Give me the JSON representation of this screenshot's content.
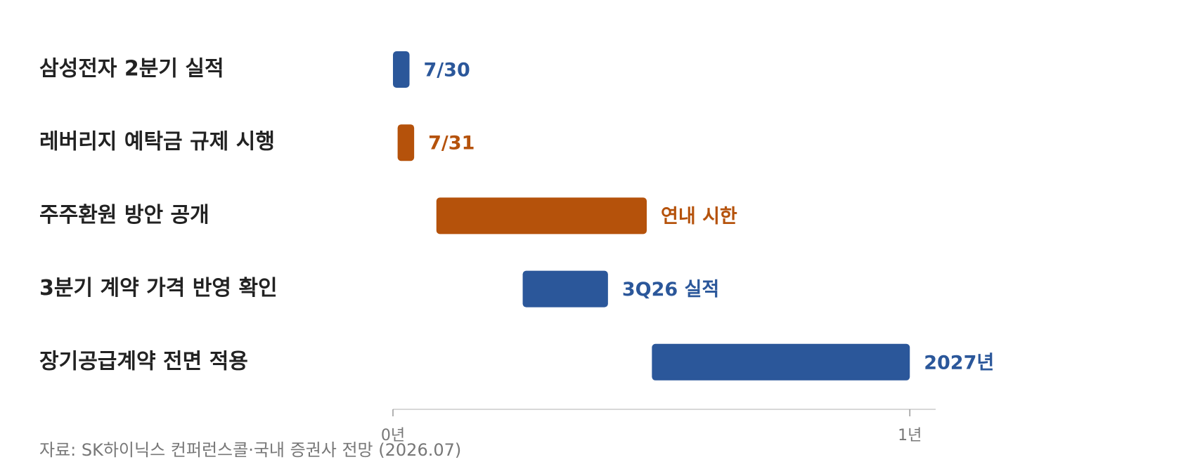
{
  "chart_data": {
    "type": "gantt",
    "tasks": [
      {
        "name": "삼성전자 2분기 실적",
        "start": 0,
        "end": 0.032,
        "label": "7/30",
        "color": "#2b579a"
      },
      {
        "name": "레버리지 예탁금 규제 시행",
        "start": 0.009,
        "end": 0.041,
        "label": "7/31",
        "color": "#b5520b"
      },
      {
        "name": "주주환원 방안 공개",
        "start": 0.084,
        "end": 0.491,
        "label": "연내 시한",
        "color": "#b5520b"
      },
      {
        "name": "3분기 계약 가격 반영 확인",
        "start": 0.251,
        "end": 0.416,
        "label": "3Q26 실적",
        "color": "#2b579a"
      },
      {
        "name": "장기공급계약 전면 적용",
        "start": 0.501,
        "end": 1.0,
        "label": "2027년",
        "color": "#2b579a"
      }
    ],
    "xlim": [
      0,
      1.05
    ],
    "xticks": [
      {
        "value": 0,
        "label": "0년"
      },
      {
        "value": 1,
        "label": "1년"
      }
    ],
    "source": "자료: SK하이닉스 컨퍼런스콜·국내 증권사 전망 (2026.07)"
  }
}
